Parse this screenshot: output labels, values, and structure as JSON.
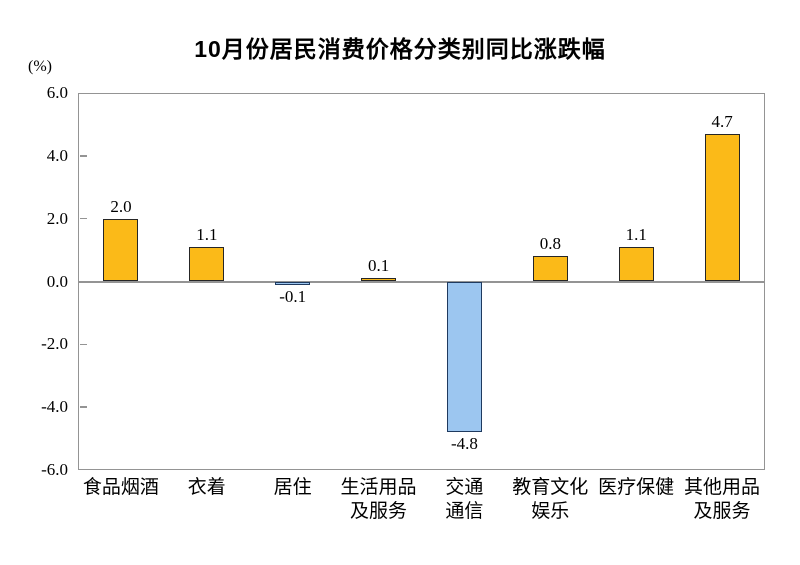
{
  "header": {
    "title": "10月份居民消费价格分类别同比涨跌幅",
    "unit_label": "(%)"
  },
  "colors": {
    "positive_fill": "#FBBA18",
    "positive_border": "#262626",
    "negative_fill": "#9CC6F0",
    "negative_border": "#1F3A5F",
    "axis": "#949494",
    "text": "#000000"
  },
  "chart_data": {
    "type": "bar",
    "title": "10月份居民消费价格分类别同比涨跌幅",
    "ylabel": "(%)",
    "categories": [
      "食品烟酒",
      "衣着",
      "居住",
      "生活用品\n及服务",
      "交通\n通信",
      "教育文化\n娱乐",
      "医疗保健",
      "其他用品\n及服务"
    ],
    "values": [
      2.0,
      1.1,
      -0.1,
      0.1,
      -4.8,
      0.8,
      1.1,
      4.7
    ],
    "value_labels": [
      "2.0",
      "1.1",
      "-0.1",
      "0.1",
      "-4.8",
      "0.8",
      "1.1",
      "4.7"
    ],
    "ylim": [
      -6.0,
      6.0
    ],
    "yticks": [
      6.0,
      4.0,
      2.0,
      0.0,
      -2.0,
      -4.0,
      -6.0
    ],
    "ytick_labels": [
      "6.0",
      "4.0",
      "2.0",
      "0.0",
      "-2.0",
      "-4.0",
      "-6.0"
    ],
    "grid": false,
    "legend": "none"
  }
}
